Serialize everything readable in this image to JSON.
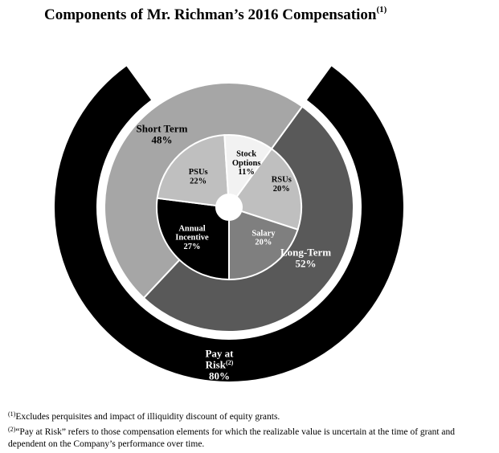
{
  "title": {
    "text": "Components of Mr. Richman’s 2016 Compensation",
    "footnote_mark": "(1)"
  },
  "chart_data": {
    "type": "pie",
    "subtype": "multi-level donut",
    "title": "Components of Mr. Richman’s 2016 Compensation",
    "levels": [
      {
        "level": "outer",
        "slices": [
          {
            "label_lines": [
              "Pay at",
              "Risk"
            ],
            "label_sup": "(2)",
            "value": 80,
            "value_label": "80%",
            "color": "#000000",
            "text_color": "#ffffff"
          }
        ]
      },
      {
        "level": "middle",
        "slices": [
          {
            "label_lines": [
              "Long-Term"
            ],
            "value": 52,
            "value_label": "52%",
            "color": "#595959",
            "text_color": "#ffffff"
          },
          {
            "label_lines": [
              "Short Term"
            ],
            "value": 48,
            "value_label": "48%",
            "color": "#a6a6a6",
            "text_color": "#000000"
          }
        ]
      },
      {
        "level": "inner",
        "slices": [
          {
            "label_lines": [
              "RSUs"
            ],
            "value": 20,
            "value_label": "20%",
            "color": "#bfbfbf",
            "text_color": "#000000"
          },
          {
            "label_lines": [
              "Salary"
            ],
            "value": 20,
            "value_label": "20%",
            "color": "#7f7f7f",
            "text_color": "#ffffff"
          },
          {
            "label_lines": [
              "Annual",
              "Incentive"
            ],
            "value": 27,
            "value_label": "27%",
            "color": "#000000",
            "text_color": "#ffffff"
          },
          {
            "label_lines": [
              "PSUs"
            ],
            "value": 22,
            "value_label": "22%",
            "color": "#bfbfbf",
            "text_color": "#000000"
          },
          {
            "label_lines": [
              "Stock",
              "Options"
            ],
            "value": 11,
            "value_label": "11%",
            "color": "#f2f2f2",
            "text_color": "#000000"
          }
        ]
      }
    ]
  },
  "footnotes": [
    {
      "mark": "(1)",
      "text": "Excludes perquisites and impact of illiquidity discount of equity grants."
    },
    {
      "mark": "(2)",
      "text": "“Pay at Risk” refers to those compensation elements for which the realizable value is uncertain at the time of grant and dependent on the Company’s performance over time."
    }
  ]
}
